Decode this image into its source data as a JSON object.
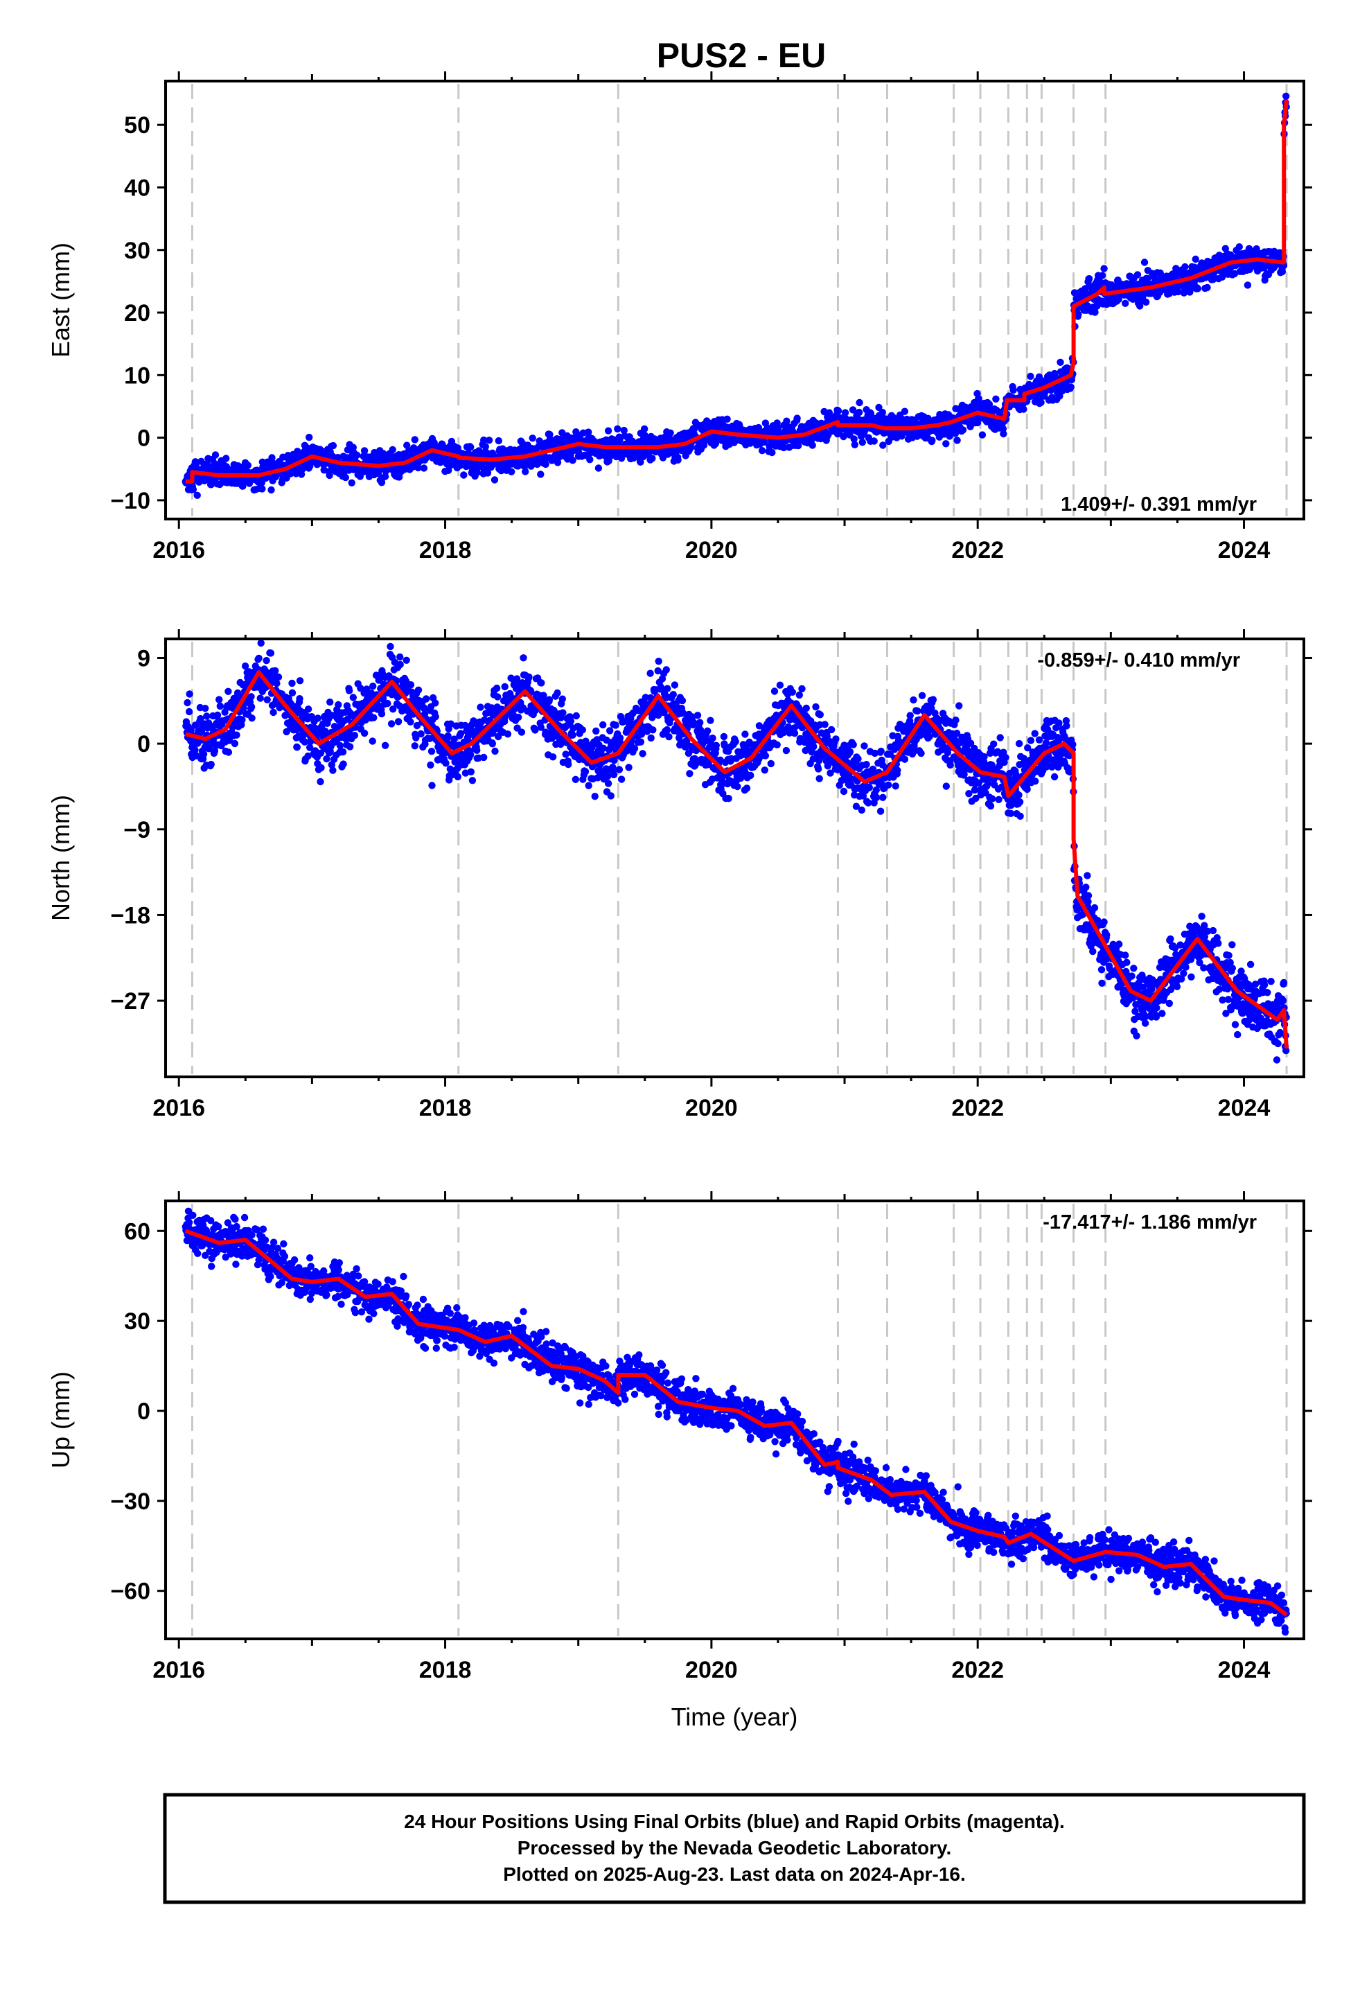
{
  "chart_data": [
    {
      "type": "scatter",
      "id": "east",
      "title": "PUS2 - EU",
      "ylabel": "East (mm)",
      "xlim": [
        2015.9,
        2024.45
      ],
      "ylim": [
        -13,
        57
      ],
      "yticks": [
        -10,
        0,
        10,
        20,
        30,
        40,
        50
      ],
      "xticks": [
        2016,
        2018,
        2020,
        2022,
        2024
      ],
      "rate_text": "1.409+/- 0.391 mm/yr",
      "rate_position": "bottom-right",
      "grid": false,
      "series": [
        {
          "role": "daily positions",
          "color": "#0000ff",
          "marker": "dot"
        },
        {
          "role": "model fit",
          "color": "#ff0000",
          "points": [
            [
              2016.05,
              -7
            ],
            [
              2016.1,
              -7
            ],
            [
              2016.1,
              -5.5
            ],
            [
              2016.3,
              -6
            ],
            [
              2016.6,
              -6
            ],
            [
              2016.8,
              -5
            ],
            [
              2017.0,
              -3
            ],
            [
              2017.2,
              -4
            ],
            [
              2017.5,
              -4.5
            ],
            [
              2017.7,
              -4
            ],
            [
              2017.9,
              -2
            ],
            [
              2018.1,
              -3
            ],
            [
              2018.1,
              -3.2
            ],
            [
              2018.35,
              -3.5
            ],
            [
              2018.6,
              -3
            ],
            [
              2018.8,
              -2
            ],
            [
              2019.0,
              -1
            ],
            [
              2019.2,
              -1.5
            ],
            [
              2019.3,
              -1.5
            ],
            [
              2019.6,
              -1.5
            ],
            [
              2019.8,
              -1
            ],
            [
              2020.0,
              1
            ],
            [
              2020.2,
              0.5
            ],
            [
              2020.5,
              0
            ],
            [
              2020.7,
              0.5
            ],
            [
              2020.95,
              2.5
            ],
            [
              2020.95,
              2
            ],
            [
              2021.2,
              2
            ],
            [
              2021.3,
              1.5
            ],
            [
              2021.5,
              1.5
            ],
            [
              2021.7,
              2
            ],
            [
              2021.8,
              2.5
            ],
            [
              2022.0,
              4
            ],
            [
              2022.2,
              3
            ],
            [
              2022.22,
              6
            ],
            [
              2022.35,
              6
            ],
            [
              2022.35,
              7
            ],
            [
              2022.5,
              8
            ],
            [
              2022.7,
              10
            ],
            [
              2022.72,
              12
            ],
            [
              2022.72,
              21
            ],
            [
              2022.9,
              23
            ],
            [
              2022.95,
              24
            ],
            [
              2022.95,
              23
            ],
            [
              2023.3,
              24
            ],
            [
              2023.6,
              25.5
            ],
            [
              2023.9,
              28
            ],
            [
              2024.1,
              28.5
            ],
            [
              2024.3,
              28
            ],
            [
              2024.3,
              50
            ],
            [
              2024.32,
              54
            ]
          ]
        }
      ],
      "events": [
        2016.1,
        2018.1,
        2019.3,
        2020.95,
        2021.32,
        2021.82,
        2022.02,
        2022.23,
        2022.37,
        2022.48,
        2022.72,
        2022.96,
        2024.32
      ]
    },
    {
      "type": "scatter",
      "id": "north",
      "ylabel": "North (mm)",
      "xlim": [
        2015.9,
        2024.45
      ],
      "ylim": [
        -35,
        11
      ],
      "yticks": [
        -27,
        -18,
        -9,
        0,
        9
      ],
      "xticks": [
        2016,
        2018,
        2020,
        2022,
        2024
      ],
      "rate_text": "-0.859+/- 0.410 mm/yr",
      "rate_position": "top-right",
      "grid": false,
      "series": [
        {
          "role": "daily positions",
          "color": "#0000ff",
          "marker": "dot"
        },
        {
          "role": "model fit",
          "color": "#ff0000",
          "points": [
            [
              2016.05,
              1
            ],
            [
              2016.2,
              0.5
            ],
            [
              2016.35,
              1.5
            ],
            [
              2016.6,
              7.5
            ],
            [
              2016.8,
              4
            ],
            [
              2017.05,
              0
            ],
            [
              2017.3,
              2
            ],
            [
              2017.6,
              6.5
            ],
            [
              2017.8,
              3
            ],
            [
              2018.05,
              -1
            ],
            [
              2018.2,
              0
            ],
            [
              2018.6,
              5.5
            ],
            [
              2018.85,
              1.5
            ],
            [
              2019.1,
              -2
            ],
            [
              2019.3,
              -1
            ],
            [
              2019.6,
              5
            ],
            [
              2019.85,
              0.5
            ],
            [
              2020.1,
              -3
            ],
            [
              2020.3,
              -1.5
            ],
            [
              2020.6,
              4
            ],
            [
              2020.85,
              -0.5
            ],
            [
              2021.15,
              -4
            ],
            [
              2021.32,
              -3
            ],
            [
              2021.6,
              3
            ],
            [
              2021.85,
              -1
            ],
            [
              2022.02,
              -3
            ],
            [
              2022.2,
              -3.5
            ],
            [
              2022.23,
              -5.5
            ],
            [
              2022.5,
              -1
            ],
            [
              2022.65,
              0
            ],
            [
              2022.72,
              -1
            ],
            [
              2022.72,
              -10
            ],
            [
              2022.75,
              -16
            ],
            [
              2022.95,
              -21
            ],
            [
              2023.15,
              -26
            ],
            [
              2023.3,
              -27
            ],
            [
              2023.65,
              -20.5
            ],
            [
              2023.95,
              -26
            ],
            [
              2024.25,
              -29
            ],
            [
              2024.3,
              -28
            ],
            [
              2024.32,
              -32
            ]
          ]
        }
      ],
      "events": [
        2016.1,
        2018.1,
        2019.3,
        2020.95,
        2021.32,
        2021.82,
        2022.02,
        2022.23,
        2022.37,
        2022.48,
        2022.72,
        2022.96,
        2024.32
      ]
    },
    {
      "type": "scatter",
      "id": "up",
      "ylabel": "Up (mm)",
      "xlabel": "Time (year)",
      "xlim": [
        2015.9,
        2024.45
      ],
      "ylim": [
        -76,
        70
      ],
      "yticks": [
        -60,
        -30,
        0,
        30,
        60
      ],
      "xticks": [
        2016,
        2018,
        2020,
        2022,
        2024
      ],
      "rate_text": "-17.417+/- 1.186 mm/yr",
      "rate_position": "top-right",
      "grid": false,
      "series": [
        {
          "role": "daily positions",
          "color": "#0000ff",
          "marker": "dot"
        },
        {
          "role": "model fit",
          "color": "#ff0000",
          "points": [
            [
              2016.05,
              60
            ],
            [
              2016.3,
              56
            ],
            [
              2016.5,
              57
            ],
            [
              2016.85,
              44
            ],
            [
              2017.0,
              43
            ],
            [
              2017.2,
              44
            ],
            [
              2017.4,
              38
            ],
            [
              2017.6,
              39
            ],
            [
              2017.8,
              29
            ],
            [
              2018.1,
              27
            ],
            [
              2018.3,
              23
            ],
            [
              2018.5,
              25
            ],
            [
              2018.8,
              15
            ],
            [
              2019.0,
              14
            ],
            [
              2019.2,
              10
            ],
            [
              2019.3,
              6
            ],
            [
              2019.3,
              12
            ],
            [
              2019.5,
              12
            ],
            [
              2019.75,
              3
            ],
            [
              2020.0,
              1
            ],
            [
              2020.2,
              0
            ],
            [
              2020.4,
              -5
            ],
            [
              2020.6,
              -4
            ],
            [
              2020.85,
              -18
            ],
            [
              2020.95,
              -17
            ],
            [
              2020.95,
              -19
            ],
            [
              2021.2,
              -23
            ],
            [
              2021.35,
              -28
            ],
            [
              2021.6,
              -27
            ],
            [
              2021.8,
              -37
            ],
            [
              2022.0,
              -40
            ],
            [
              2022.2,
              -42
            ],
            [
              2022.23,
              -44
            ],
            [
              2022.4,
              -41
            ],
            [
              2022.72,
              -50
            ],
            [
              2022.96,
              -47
            ],
            [
              2023.2,
              -48
            ],
            [
              2023.4,
              -52
            ],
            [
              2023.6,
              -51
            ],
            [
              2023.85,
              -62
            ],
            [
              2024.0,
              -63
            ],
            [
              2024.2,
              -64
            ],
            [
              2024.32,
              -68
            ]
          ]
        }
      ],
      "events": [
        2016.1,
        2018.1,
        2019.3,
        2020.95,
        2021.32,
        2021.82,
        2022.02,
        2022.23,
        2022.37,
        2022.48,
        2022.72,
        2022.96,
        2024.32
      ]
    }
  ],
  "footer": {
    "line1": "24 Hour Positions Using Final Orbits (blue) and Rapid Orbits (magenta).",
    "line2": "Processed by the Nevada Geodetic Laboratory.",
    "line3": "Plotted on 2025-Aug-23. Last data on 2024-Apr-16."
  },
  "colors": {
    "points": "#0000ff",
    "model": "#ff0000",
    "event_lines": "#c8c8c8",
    "frame": "#000000"
  }
}
